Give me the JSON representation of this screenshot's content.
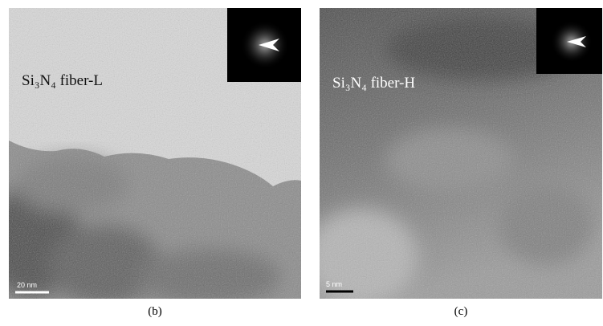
{
  "panels": [
    {
      "label": "Si₃N₄ fiber-L",
      "scale_bar": "20 nm",
      "caption": "(b)"
    },
    {
      "label": "Si₃N₄ fiber-H",
      "scale_bar": "5 nm",
      "caption": "(c)"
    }
  ]
}
